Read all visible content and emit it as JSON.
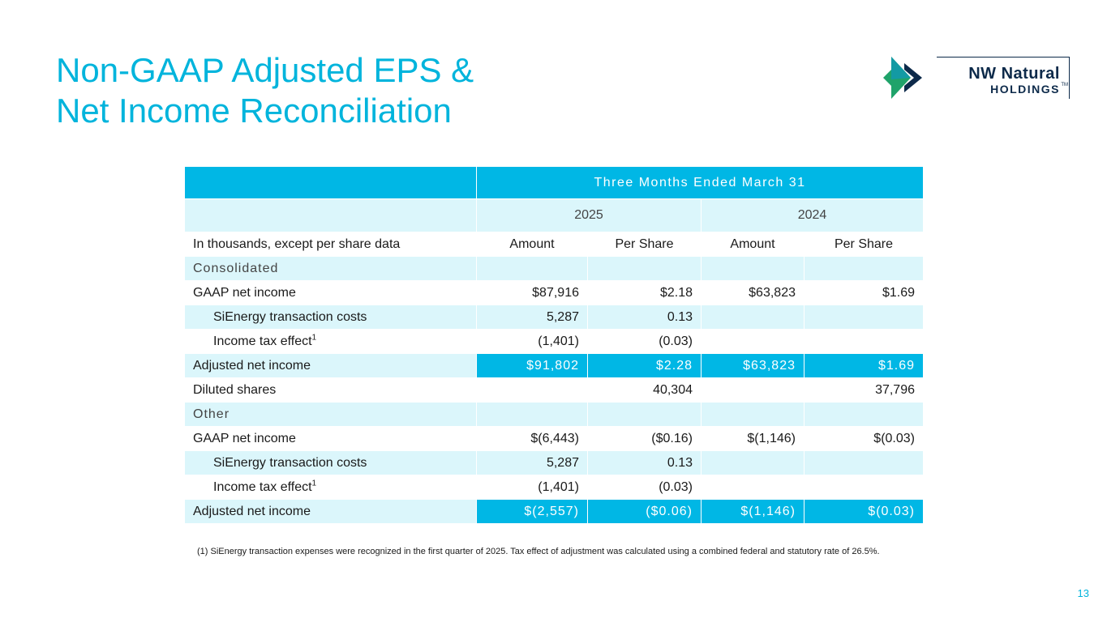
{
  "title": {
    "line1": "Non-GAAP Adjusted EPS &",
    "line2": "Net Income Reconciliation"
  },
  "logo": {
    "line1": "NW Natural",
    "line2": "HOLDINGS",
    "tm": "TM",
    "colors": {
      "green": "#1fa36a",
      "teal": "#139aa4",
      "navy": "#0d2a4a"
    }
  },
  "table": {
    "period_header": "Three Months Ended March 31",
    "years": [
      "2025",
      "2024"
    ],
    "units_label": "In thousands, except per share data",
    "columns": [
      "Amount",
      "Per Share",
      "Amount",
      "Per Share"
    ],
    "consolidated": {
      "section": "Consolidated",
      "gaap": {
        "label": "GAAP net income",
        "values": [
          "$87,916",
          "$2.18",
          "$63,823",
          "$1.69"
        ]
      },
      "sienergy": {
        "label": "SiEnergy transaction costs",
        "values": [
          "5,287",
          "0.13",
          "",
          ""
        ]
      },
      "tax": {
        "label": "Income tax effect",
        "sup": "1",
        "values": [
          "(1,401)",
          "(0.03)",
          "",
          ""
        ]
      },
      "adjusted": {
        "label": "Adjusted net income",
        "values": [
          "$91,802",
          "$2.28",
          "$63,823",
          "$1.69"
        ]
      },
      "diluted": {
        "label": "Diluted shares",
        "values": [
          "",
          "40,304",
          "",
          "37,796"
        ]
      }
    },
    "other": {
      "section": "Other",
      "gaap": {
        "label": "GAAP net income",
        "values": [
          "$(6,443)",
          "($0.16)",
          "$(1,146)",
          "$(0.03)"
        ]
      },
      "sienergy": {
        "label": "SiEnergy transaction costs",
        "values": [
          "5,287",
          "0.13",
          "",
          ""
        ]
      },
      "tax": {
        "label": "Income tax effect",
        "sup": "1",
        "values": [
          "(1,401)",
          "(0.03)",
          "",
          ""
        ]
      },
      "adjusted": {
        "label": "Adjusted net income",
        "values": [
          "$(2,557)",
          "($0.06)",
          "$(1,146)",
          "$(0.03)"
        ]
      }
    }
  },
  "footnote": "(1) SiEnergy transaction expenses were recognized in the first quarter of 2025. Tax effect of adjustment was calculated using a combined federal and statutory rate of 26.5%.",
  "page_number": "13",
  "colors": {
    "accent": "#00b4dc",
    "header_blue": "#00b7e5",
    "light_blue": "#dbf6fb"
  }
}
